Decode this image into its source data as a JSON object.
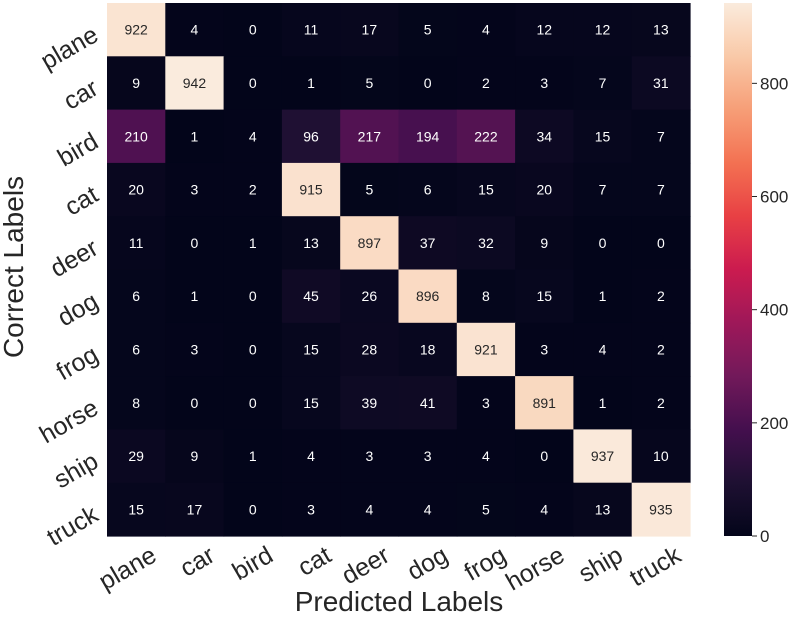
{
  "chart_data": {
    "type": "heatmap",
    "title": "",
    "xlabel": "Predicted Labels",
    "ylabel": "Correct Labels",
    "x_categories": [
      "plane",
      "car",
      "bird",
      "cat",
      "deer",
      "dog",
      "frog",
      "horse",
      "ship",
      "truck"
    ],
    "y_categories": [
      "plane",
      "car",
      "bird",
      "cat",
      "deer",
      "dog",
      "frog",
      "horse",
      "ship",
      "truck"
    ],
    "values": [
      [
        922,
        4,
        0,
        11,
        17,
        5,
        4,
        12,
        12,
        13
      ],
      [
        9,
        942,
        0,
        1,
        5,
        0,
        2,
        3,
        7,
        31
      ],
      [
        210,
        1,
        4,
        96,
        217,
        194,
        222,
        34,
        15,
        7
      ],
      [
        20,
        3,
        2,
        915,
        5,
        6,
        15,
        20,
        7,
        7
      ],
      [
        11,
        0,
        1,
        13,
        897,
        37,
        32,
        9,
        0,
        0
      ],
      [
        6,
        1,
        0,
        45,
        26,
        896,
        8,
        15,
        1,
        2
      ],
      [
        6,
        3,
        0,
        15,
        28,
        18,
        921,
        3,
        4,
        2
      ],
      [
        8,
        0,
        0,
        15,
        39,
        41,
        3,
        891,
        1,
        2
      ],
      [
        29,
        9,
        1,
        4,
        3,
        3,
        4,
        0,
        937,
        10
      ],
      [
        15,
        17,
        0,
        3,
        4,
        4,
        5,
        4,
        13,
        935
      ]
    ],
    "colorbar": {
      "colormap": "rocket",
      "range": [
        0,
        942
      ],
      "ticks": [
        0,
        200,
        400,
        600,
        800
      ]
    }
  }
}
